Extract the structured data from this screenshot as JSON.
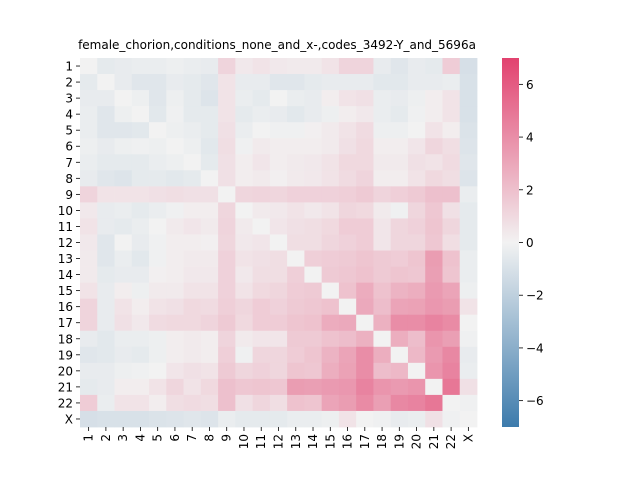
{
  "chart_data": {
    "type": "heatmap",
    "title": "female_chorion,conditions_none_and_x-,codes_3492-Y_and_5696a",
    "labels": [
      "1",
      "2",
      "3",
      "4",
      "5",
      "6",
      "7",
      "8",
      "9",
      "10",
      "11",
      "12",
      "13",
      "14",
      "15",
      "16",
      "17",
      "18",
      "19",
      "20",
      "21",
      "22",
      "X"
    ],
    "colorbar": {
      "vmin": -7,
      "vmax": 7,
      "ticks": [
        -6,
        -4,
        -2,
        0,
        2,
        4,
        6
      ],
      "tick_labels": [
        "−6",
        "−4",
        "−2",
        "0",
        "2",
        "4",
        "6"
      ]
    },
    "colormap": {
      "negative": "#3d7bac",
      "center": "#f2f2f2",
      "positive": "#e2426f"
    },
    "values": [
      [
        0,
        -0.5,
        -0.4,
        -0.3,
        -0.3,
        -0.2,
        -0.3,
        -0.4,
        1.2,
        0.4,
        0.6,
        0.4,
        0.3,
        0.3,
        0.6,
        1.2,
        1.2,
        -0.4,
        -0.7,
        -0.4,
        -0.5,
        1.5,
        -1.1
      ],
      [
        -0.5,
        0,
        -0.4,
        -0.7,
        -0.7,
        -0.4,
        -0.5,
        -0.7,
        0.6,
        -0.4,
        -0.4,
        -0.7,
        -0.7,
        -0.5,
        -0.4,
        -0.4,
        -0.4,
        -0.6,
        -0.6,
        -0.4,
        -0.4,
        -0.3,
        -1.0
      ],
      [
        -0.4,
        -0.4,
        0,
        -0.2,
        -0.7,
        -0.2,
        -0.5,
        -0.8,
        0.6,
        -0.3,
        -0.5,
        0.0,
        -0.3,
        -0.4,
        0.2,
        0.6,
        0.7,
        -0.3,
        -0.4,
        -0.2,
        0.2,
        0.6,
        -1.0
      ],
      [
        -0.3,
        -0.7,
        -0.2,
        0,
        -0.6,
        -0.1,
        -0.5,
        -0.5,
        0.6,
        -0.5,
        -0.3,
        -0.4,
        -0.6,
        -0.4,
        -0.2,
        0.2,
        0.4,
        -0.3,
        -0.5,
        -0.1,
        0.2,
        0.6,
        -1.0
      ],
      [
        -0.3,
        -0.7,
        -0.7,
        -0.6,
        0,
        -0.2,
        -0.3,
        -0.5,
        0.7,
        -0.3,
        0.0,
        -0.1,
        -0.1,
        0.1,
        0.3,
        0.6,
        0.9,
        -0.2,
        -0.2,
        0.0,
        0.6,
        0.2,
        -0.9
      ],
      [
        -0.2,
        -0.4,
        -0.2,
        -0.1,
        -0.2,
        0,
        -0.2,
        -0.6,
        0.8,
        -0.1,
        0.3,
        0.2,
        0.2,
        0.2,
        0.3,
        0.7,
        1.0,
        0.2,
        0.2,
        0.5,
        1.1,
        0.8,
        -0.8
      ],
      [
        -0.3,
        -0.5,
        -0.5,
        -0.5,
        -0.3,
        -0.2,
        0,
        -0.5,
        0.7,
        0.2,
        0.5,
        0.2,
        0.3,
        0.4,
        0.6,
        1.0,
        1.0,
        0.3,
        0.3,
        0.7,
        0.6,
        0.9,
        -0.7
      ],
      [
        -0.4,
        -0.7,
        -0.8,
        -0.5,
        -0.5,
        -0.6,
        -0.5,
        0,
        0.7,
        0.2,
        0.3,
        0.1,
        0.3,
        0.4,
        0.6,
        0.9,
        1.2,
        0.2,
        0.2,
        0.6,
        1.0,
        0.8,
        -0.8
      ],
      [
        1.2,
        0.6,
        0.6,
        0.6,
        0.7,
        0.8,
        0.7,
        0.7,
        0,
        1.1,
        1.2,
        1.1,
        1.3,
        1.3,
        1.3,
        1.4,
        1.6,
        1.2,
        1.4,
        1.6,
        2.0,
        2.0,
        -0.3
      ],
      [
        0.4,
        -0.4,
        -0.3,
        -0.5,
        -0.3,
        -0.1,
        0.2,
        0.2,
        1.1,
        0,
        0.3,
        0.4,
        0.6,
        0.4,
        0.6,
        1.1,
        1.0,
        0.3,
        -0.1,
        1.1,
        1.7,
        0.7,
        -0.5
      ],
      [
        0.6,
        -0.4,
        -0.5,
        -0.3,
        0.0,
        0.3,
        0.5,
        0.3,
        1.2,
        0.3,
        0,
        0.5,
        0.7,
        0.8,
        1.0,
        1.5,
        1.5,
        0.5,
        1.1,
        1.3,
        1.8,
        1.1,
        -0.5
      ],
      [
        0.4,
        -0.7,
        0.0,
        -0.4,
        -0.1,
        0.2,
        0.2,
        0.1,
        1.1,
        0.4,
        0.5,
        0,
        0.8,
        0.8,
        1.1,
        1.3,
        1.5,
        0.5,
        1.1,
        1.1,
        1.7,
        0.8,
        -0.5
      ],
      [
        0.3,
        -0.7,
        -0.3,
        -0.6,
        -0.1,
        0.2,
        0.3,
        0.3,
        1.3,
        0.6,
        0.7,
        0.8,
        0,
        1.4,
        1.5,
        1.6,
        1.8,
        1.6,
        1.5,
        1.8,
        3.4,
        1.9,
        -0.3
      ],
      [
        0.3,
        -0.5,
        -0.4,
        -0.4,
        0.1,
        0.2,
        0.4,
        0.4,
        1.3,
        0.4,
        0.8,
        0.8,
        1.4,
        0,
        1.6,
        1.7,
        1.9,
        1.6,
        1.8,
        1.7,
        3.3,
        1.8,
        -0.3
      ],
      [
        0.6,
        -0.4,
        0.2,
        -0.2,
        0.3,
        0.3,
        0.6,
        0.6,
        1.3,
        0.6,
        1.0,
        1.1,
        1.5,
        1.6,
        0,
        1.9,
        2.8,
        1.9,
        2.5,
        2.7,
        3.5,
        3.1,
        -0.2
      ],
      [
        1.2,
        -0.4,
        0.6,
        0.2,
        0.6,
        0.7,
        1.0,
        0.9,
        1.4,
        1.1,
        1.5,
        1.3,
        1.6,
        1.7,
        1.9,
        0,
        2.9,
        2.1,
        3.1,
        3.2,
        3.6,
        3.4,
        0.6
      ],
      [
        1.2,
        -0.4,
        0.7,
        0.4,
        0.9,
        1.0,
        1.0,
        1.2,
        1.6,
        1.0,
        1.5,
        1.5,
        1.8,
        1.9,
        2.8,
        2.9,
        0,
        2.6,
        4.0,
        4.0,
        4.4,
        4.1,
        0.0
      ],
      [
        -0.4,
        -0.6,
        -0.3,
        -0.3,
        -0.2,
        0.2,
        0.3,
        0.2,
        1.2,
        0.3,
        0.5,
        0.5,
        1.6,
        1.6,
        1.9,
        2.1,
        2.6,
        0,
        2.7,
        2.1,
        3.7,
        3.3,
        -0.1
      ],
      [
        -0.7,
        -0.6,
        -0.4,
        -0.5,
        -0.2,
        0.2,
        0.3,
        0.2,
        1.4,
        -0.1,
        1.1,
        1.1,
        1.5,
        1.8,
        2.5,
        3.1,
        4.0,
        2.7,
        0,
        2.3,
        3.5,
        4.2,
        -0.4
      ],
      [
        -0.4,
        -0.4,
        -0.2,
        -0.1,
        0.0,
        0.5,
        0.7,
        0.6,
        1.6,
        1.1,
        1.3,
        1.1,
        1.8,
        1.7,
        2.7,
        3.2,
        4.0,
        2.1,
        2.3,
        0,
        3.7,
        4.4,
        -0.3
      ],
      [
        -0.5,
        -0.4,
        0.2,
        0.2,
        0.6,
        1.1,
        0.6,
        1.0,
        2.0,
        1.7,
        1.8,
        1.7,
        3.4,
        3.3,
        3.5,
        3.6,
        4.4,
        3.7,
        3.5,
        3.7,
        0,
        4.9,
        0.7
      ],
      [
        1.5,
        -0.3,
        0.6,
        0.6,
        0.2,
        0.8,
        0.9,
        0.8,
        2.0,
        0.7,
        1.1,
        0.8,
        1.9,
        1.8,
        3.1,
        3.4,
        4.1,
        3.3,
        4.2,
        4.4,
        4.9,
        0,
        -0.1
      ],
      [
        -1.1,
        -1.0,
        -1.0,
        -1.0,
        -0.9,
        -0.8,
        -0.7,
        -0.8,
        -0.3,
        -0.5,
        -0.5,
        -0.5,
        -0.3,
        -0.3,
        -0.2,
        0.6,
        0.0,
        -0.1,
        -0.4,
        -0.3,
        0.7,
        -0.1,
        0
      ]
    ]
  }
}
